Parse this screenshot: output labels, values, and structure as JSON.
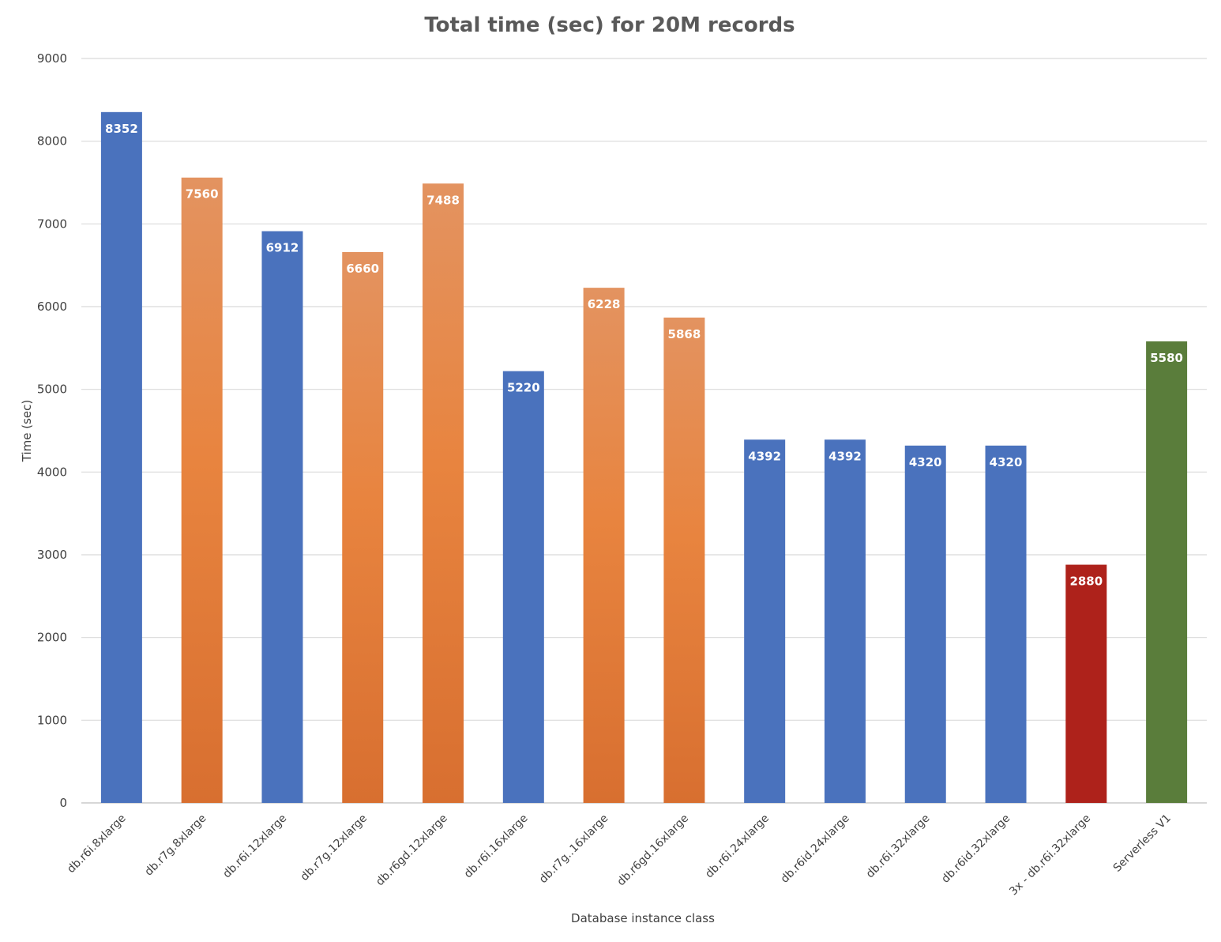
{
  "chart_data": {
    "type": "bar",
    "title": "Total time (sec) for 20M records",
    "xlabel": "Database instance class",
    "ylabel": "Time (sec)",
    "ylim": [
      0,
      9000
    ],
    "yticks": [
      0,
      1000,
      2000,
      3000,
      4000,
      5000,
      6000,
      7000,
      8000,
      9000
    ],
    "grid": true,
    "categories": [
      "db.r6i.8xlarge",
      "db.r7g.8xlarge",
      "db.r6i.12xlarge",
      "db.r7g.12xlarge",
      "db.r6gd.12xlarge",
      "db.r6i.16xlarge",
      "db.r7g..16xlarge",
      "db.r6gd.16xlarge",
      "db.r6i.24xlarge",
      "db.r6id.24xlarge",
      "db.r6i.32xlarge",
      "db.r6id.32xlarge",
      "3x - db.r6i.32xlarge",
      "Serverless V1"
    ],
    "values": [
      8352,
      7560,
      6912,
      6660,
      7488,
      5220,
      6228,
      5868,
      4392,
      4392,
      4320,
      4320,
      2880,
      5580
    ],
    "bar_colors": [
      "#4a72bd",
      "orange-gradient",
      "#4a72bd",
      "orange-gradient",
      "orange-gradient",
      "#4a72bd",
      "orange-gradient",
      "orange-gradient",
      "#4a72bd",
      "#4a72bd",
      "#4a72bd",
      "#4a72bd",
      "#ae221b",
      "#5a7d3b"
    ],
    "colors": {
      "blue": "#4a72bd",
      "orange_top": "#e39360",
      "orange_mid": "#e8843f",
      "orange_bottom": "#d86f30",
      "red": "#ae221b",
      "green": "#5a7d3b"
    }
  }
}
